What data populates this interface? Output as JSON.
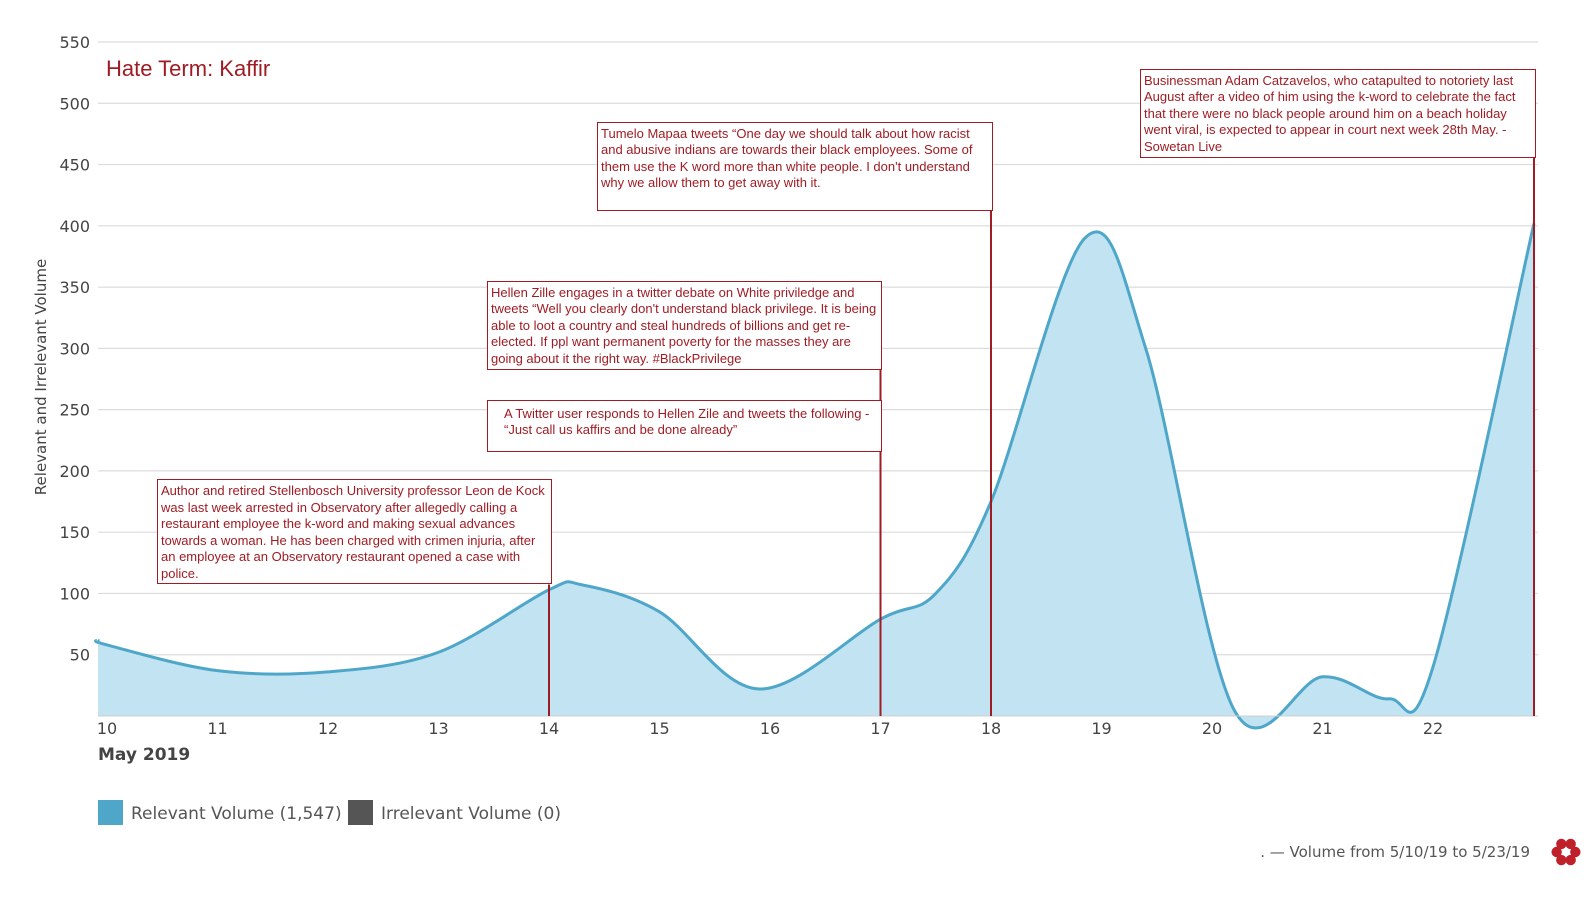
{
  "chart_data": {
    "type": "area",
    "title": "Hate Term: Kaffir",
    "ylabel": "Relevant and Irrelevant Volume",
    "xlabel": "May 2019",
    "ylim": [
      0,
      550
    ],
    "yticks": [
      50,
      100,
      150,
      200,
      250,
      300,
      350,
      400,
      450,
      500,
      550
    ],
    "xlim": [
      10,
      23
    ],
    "xticks": [
      10,
      11,
      12,
      13,
      14,
      15,
      16,
      17,
      18,
      19,
      20,
      21,
      22
    ],
    "series": [
      {
        "name": "Relevant Volume",
        "color": "#4ea7c8",
        "fill": "#c2e3f2",
        "x": [
          9.9,
          10,
          11,
          12,
          13,
          14,
          14.3,
          15,
          15.9,
          17,
          17.5,
          18,
          18.85,
          19.4,
          20.2,
          21,
          21.6,
          22,
          23
        ],
        "values": [
          62,
          58,
          37,
          36,
          52,
          103,
          107,
          85,
          22,
          79,
          100,
          175,
          390,
          300,
          5,
          32,
          14,
          40,
          402
        ]
      }
    ],
    "legend": [
      {
        "label": "Relevant Volume (1,547)",
        "color": "#4ea7c8"
      },
      {
        "label": "Irrelevant Volume (0)",
        "color": "#555555"
      }
    ],
    "annotations": [
      {
        "x": 14,
        "top_value": 193,
        "text": "Author and retired Stellenbosch University professor Leon de Kock was last week arrested in Observatory after allegedly calling a restaurant employee the k-word and making sexual advances towards a woman. He has been charged with crimen injuria, after an employee at an Observatory restaurant opened a case with police."
      },
      {
        "x": 17,
        "top_value": 355,
        "text": "Hellen Zille  engages in a twitter debate on White priviledge and tweets “Well you clearly don't understand black privilege. It is being able to loot a country and steal hundreds of billions and get re-elected. If ppl want permanent poverty for the masses they are going about it the right way. #BlackPrivilege"
      },
      {
        "x": 17,
        "top_value": 258,
        "text": "A Twitter user responds to Hellen Zile  and tweets the following - “Just call us kaffirs and be done already”"
      },
      {
        "x": 18,
        "top_value": 485,
        "text": "Tumelo Mapaa tweets “One day we should talk about how racist and abusive indians are towards their black employees. Some of them use the K word more than white people. I don't  understand why we allow them to get away with it."
      },
      {
        "x": 23,
        "top_value": 528,
        "text": "Businessman Adam Catzavelos, who catapulted to notoriety last August after a video of him using the k-word to celebrate the fact that there were no black people around him on a beach holiday went viral, is expected to appear in court next week 28th May. - Sowetan Live"
      }
    ],
    "annotation_color": "#a01c24"
  },
  "footer": {
    "text": ". — Volume from 5/10/19 to 5/23/19",
    "logo_color": "#c0202a"
  }
}
